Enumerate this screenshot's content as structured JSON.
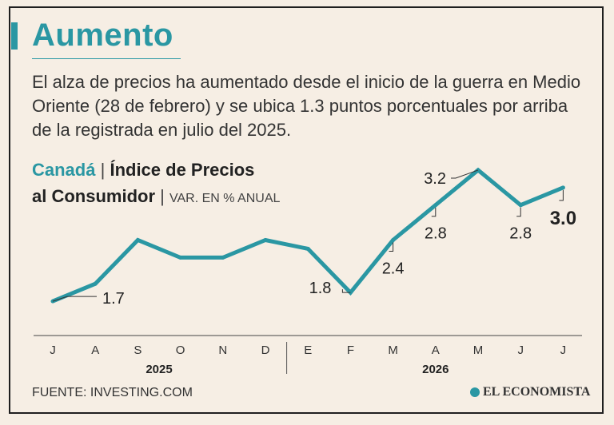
{
  "headline": "Aumento",
  "intro": "El alza de precios ha aumentado desde el inicio de la guerra en Medio Oriente (28 de febrero) y se ubica 1.3 puntos porcentuales por arriba de la registrada en julio del 2025.",
  "chart_title": {
    "country": "Canadá",
    "separator": "|",
    "metric_line1": "Índice de Precios",
    "metric_line2": "al Consumidor",
    "unit": "VAR. EN % ANUAL"
  },
  "source": "FUENTE: INVESTING.COM",
  "logo_text": "EL ECONOMISTA",
  "colors": {
    "accent": "#2a97a3",
    "background": "#f6eee4",
    "text": "#2b2b2b"
  },
  "chart_data": {
    "type": "line",
    "categories": [
      "J",
      "A",
      "S",
      "O",
      "N",
      "D",
      "E",
      "F",
      "M",
      "A",
      "M",
      "J",
      "J"
    ],
    "year_groups": [
      {
        "label": "2025",
        "start": 0,
        "end": 5
      },
      {
        "label": "2026",
        "start": 6,
        "end": 12
      }
    ],
    "series": [
      {
        "values": [
          1.7,
          1.9,
          2.4,
          2.2,
          2.2,
          2.4,
          2.3,
          1.8,
          2.4,
          2.8,
          3.2,
          2.8,
          3.0
        ]
      }
    ],
    "data_labels": [
      {
        "index": 0,
        "text": "1.7"
      },
      {
        "index": 7,
        "text": "1.8"
      },
      {
        "index": 8,
        "text": "2.4"
      },
      {
        "index": 9,
        "text": "2.8"
      },
      {
        "index": 10,
        "text": "3.2"
      },
      {
        "index": 11,
        "text": "2.8"
      },
      {
        "index": 12,
        "text": "3.0",
        "emphasis": true
      }
    ],
    "ylim": [
      1.5,
      3.3
    ],
    "grid": false,
    "xlabel": "",
    "ylabel": ""
  }
}
